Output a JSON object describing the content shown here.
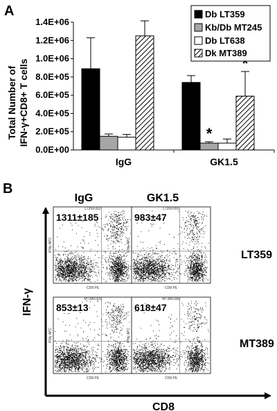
{
  "panel_a": {
    "label": "A",
    "y_axis_title_line1": "Total Number of",
    "y_axis_title_line2": "IFN-γ+CD8+ T cells",
    "significance_marker": "*"
  },
  "panel_b": {
    "label": "B",
    "y_axis_title": "IFN-γ",
    "x_axis_title": "CD8",
    "column_labels": [
      "IgG",
      "GK1.5"
    ],
    "row_labels": [
      "LT359",
      "MT389"
    ],
    "plots": [
      {
        "count": "1311±185",
        "header": "LT359.062",
        "xlabel": "CD8 PE",
        "ylabel": "IFNγ APC"
      },
      {
        "count": "983±47",
        "header": "LT359.065",
        "xlabel": "CD8 PE",
        "ylabel": "IFNγ APC"
      },
      {
        "count": "853±13",
        "header": "MT389.003",
        "xlabel": "CD8 PE",
        "ylabel": "IFNγ APC"
      },
      {
        "count": "618±47",
        "header": "MT389.085",
        "xlabel": "CD8 PE",
        "ylabel": "IFNγ APC"
      }
    ]
  },
  "colors": {
    "Db LT359": "#000000",
    "Kb/Db MT245": "#a6a6a6",
    "Db LT638": "#ffffff",
    "Dk MT389": "hatched"
  },
  "chart_data": {
    "type": "bar",
    "categories": [
      "IgG",
      "GK1.5"
    ],
    "series": [
      {
        "name": "Db LT359",
        "values": [
          890000,
          740000
        ],
        "errors": [
          340000,
          75000
        ]
      },
      {
        "name": "Kb/Db MT245",
        "values": [
          150000,
          75000
        ],
        "errors": [
          25000,
          15000
        ]
      },
      {
        "name": "Db LT638",
        "values": [
          140000,
          75000
        ],
        "errors": [
          30000,
          45000
        ]
      },
      {
        "name": "Dk MT389",
        "values": [
          1250000,
          590000
        ],
        "errors": [
          165000,
          270000
        ]
      }
    ],
    "ylim": [
      0,
      1400000
    ],
    "yticks": [
      0,
      200000,
      400000,
      600000,
      800000,
      1000000,
      1200000,
      1400000
    ],
    "ytick_labels": [
      "0.0E+00",
      "2.0E+05",
      "4.0E+05",
      "6.0E+05",
      "8.0E+05",
      "1.0E+06",
      "1.2E+06",
      "1.4E+06"
    ],
    "significant": [
      [
        1,
        1
      ],
      [
        1,
        3
      ]
    ],
    "legend_position": "top-right",
    "grid": false
  }
}
